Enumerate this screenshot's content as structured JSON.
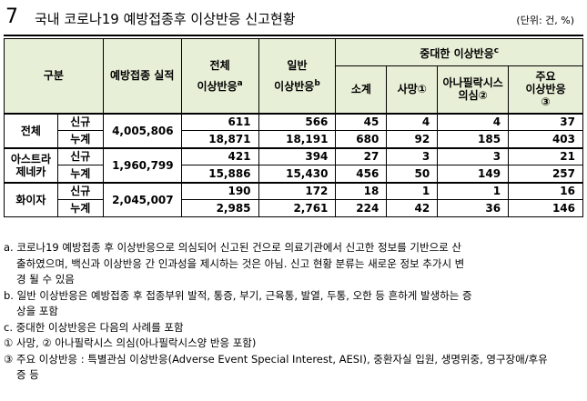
{
  "title": {
    "number": "7",
    "text": "국내 코로나19 예방접종후 이상반응 신고현황",
    "unit": "(단위: 건, %)"
  },
  "table": {
    "header": {
      "group": "구분",
      "vaccinated": "예방접종 실적",
      "total_label": "전체",
      "total_sub": "이상반응",
      "total_sup": "a",
      "general_label": "일반",
      "general_sub": "이상반응",
      "general_sup": "b",
      "serious": "중대한 이상반응",
      "serious_sup": "c",
      "subtotal": "소계",
      "death": "사망①",
      "anaphylaxis_1": "아나필락시스",
      "anaphylaxis_2": "의심②",
      "major_1": "주요",
      "major_2": "이상반응",
      "major_3": "③"
    },
    "groups": [
      {
        "name": "전체",
        "vaccinated": "4,005,806",
        "rows": [
          {
            "type": "신규",
            "total": "611",
            "general": "566",
            "subtotal": "45",
            "death": "4",
            "anaphylaxis": "4",
            "major": "37"
          },
          {
            "type": "누계",
            "total": "18,871",
            "general": "18,191",
            "subtotal": "680",
            "death": "92",
            "anaphylaxis": "185",
            "major": "403"
          }
        ]
      },
      {
        "name": "아스트라 제네카",
        "name_1": "아스트라",
        "name_2": "제네카",
        "vaccinated": "1,960,799",
        "rows": [
          {
            "type": "신규",
            "total": "421",
            "general": "394",
            "subtotal": "27",
            "death": "3",
            "anaphylaxis": "3",
            "major": "21"
          },
          {
            "type": "누계",
            "total": "15,886",
            "general": "15,430",
            "subtotal": "456",
            "death": "50",
            "anaphylaxis": "149",
            "major": "257"
          }
        ]
      },
      {
        "name": "화이자",
        "vaccinated": "2,045,007",
        "rows": [
          {
            "type": "신규",
            "total": "190",
            "general": "172",
            "subtotal": "18",
            "death": "1",
            "anaphylaxis": "1",
            "major": "16"
          },
          {
            "type": "누계",
            "total": "2,985",
            "general": "2,761",
            "subtotal": "224",
            "death": "42",
            "anaphylaxis": "36",
            "major": "146"
          }
        ]
      }
    ]
  },
  "notes": {
    "a_1": "a. 코로나19 예방접종 후 이상반응으로 의심되어 신고된 건으로 의료기관에서 신고한 정보를 기반으로 산",
    "a_2": "출하였으며, 백신과 이상반응 간 인과성을 제시하는 것은 아님. 신고 현황 분류는 새로운 정보 추가시 변",
    "a_3": "경 될 수 있음",
    "b_1": "b. 일반 이상반응은 예방접종 후 접종부위 발적, 통증, 부기, 근육통, 발열, 두통, 오한 등 흔하게 발생하는 증",
    "b_2": "상을 포함",
    "c_1": "c. 중대한 이상반응은 다음의 사례를 포함",
    "c_2": "① 사망, ② 아나필락시스 의심(아나필락시스양 반응 포함)",
    "c_3": "③ 주요 이상반응 : 특별관심 이상반응(Adverse Event Special Interest, AESI), 중환자실 입원, 생명위중, 영구장애/후유",
    "c_4": "증 등"
  }
}
